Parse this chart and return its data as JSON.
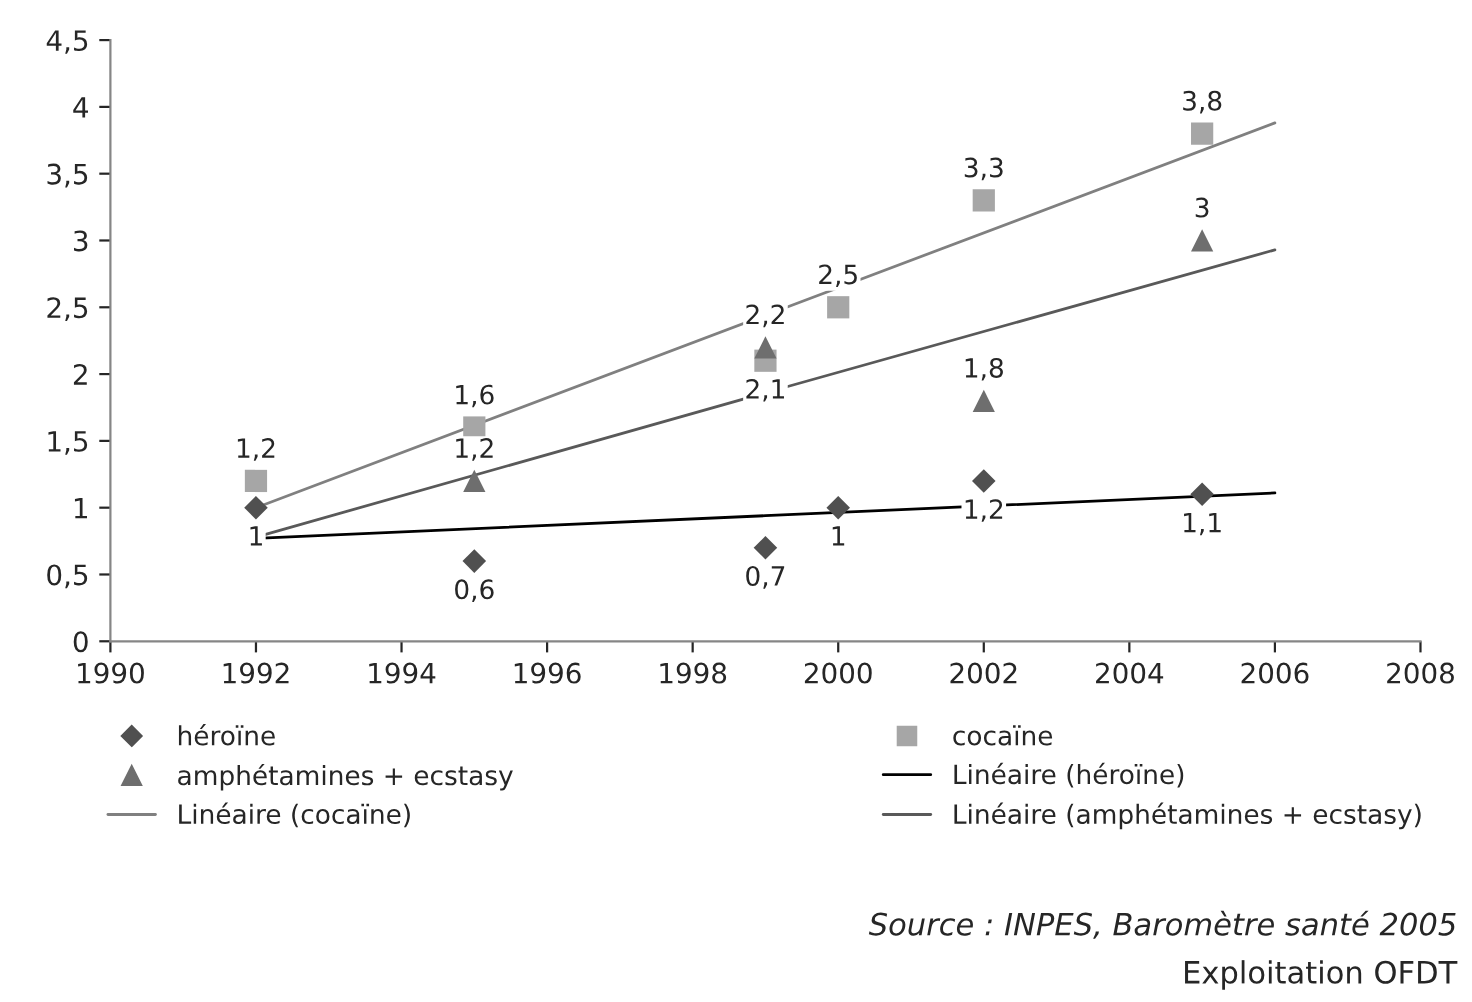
{
  "chart_data": {
    "type": "scatter",
    "x": [
      1992,
      1995,
      1999,
      2000,
      2002,
      2005
    ],
    "series": [
      {
        "name": "héroïne",
        "color": "#505050",
        "marker": "diamond",
        "values": [
          1,
          0.6,
          0.7,
          1,
          1.2,
          1.1
        ],
        "value_labels": [
          "1",
          "0,6",
          "0,7",
          "1",
          "1,2",
          "1,1"
        ]
      },
      {
        "name": "cocaïne",
        "color": "#a6a6a6",
        "marker": "square",
        "values": [
          1.2,
          1.6,
          2.1,
          2.5,
          3.3,
          3.8
        ],
        "value_labels": [
          "1,2",
          "1,6",
          "2,1",
          "2,5",
          "3,3",
          "3,8"
        ]
      },
      {
        "name": "amphétamines + ecstasy",
        "color": "#6e6e6e",
        "marker": "triangle",
        "values": [
          null,
          1.2,
          2.2,
          null,
          1.8,
          3
        ],
        "value_labels": [
          null,
          "1,2",
          "2,2",
          null,
          "1,8",
          "3"
        ]
      },
      {
        "name": "Linéaire (héroïne)",
        "type": "line",
        "color": "#000000",
        "x": [
          1992,
          1999,
          2006
        ],
        "values": [
          0.77,
          0.94,
          1.11
        ]
      },
      {
        "name": "Linéaire (cocaïne)",
        "type": "line",
        "color": "#808080",
        "x": [
          1992,
          1999,
          2006
        ],
        "values": [
          1.0,
          2.44,
          3.88
        ]
      },
      {
        "name": "Linéaire (amphétamines + ecstasy)",
        "type": "line",
        "color": "#595959",
        "x": [
          1992,
          1999,
          2006
        ],
        "values": [
          0.78,
          1.86,
          2.93
        ]
      }
    ],
    "xlim": [
      1990,
      2008
    ],
    "xticks": [
      1990,
      1992,
      1994,
      1996,
      1998,
      2000,
      2002,
      2004,
      2006,
      2008
    ],
    "ylim": [
      0,
      4.5
    ],
    "yticks": [
      0,
      {
        "value": 0.5,
        "label": "0,5"
      },
      1,
      {
        "value": 1.5,
        "label": "1,5"
      },
      2,
      {
        "value": 2.5,
        "label": "2,5"
      },
      3,
      {
        "value": 3.5,
        "label": "3,5"
      },
      4,
      {
        "value": 4.5,
        "label": "4,5"
      }
    ],
    "grid": false,
    "legend": "bottom",
    "annotations": [
      "Source : INPES, Baromètre santé 2005",
      "Exploitation OFDT"
    ]
  }
}
